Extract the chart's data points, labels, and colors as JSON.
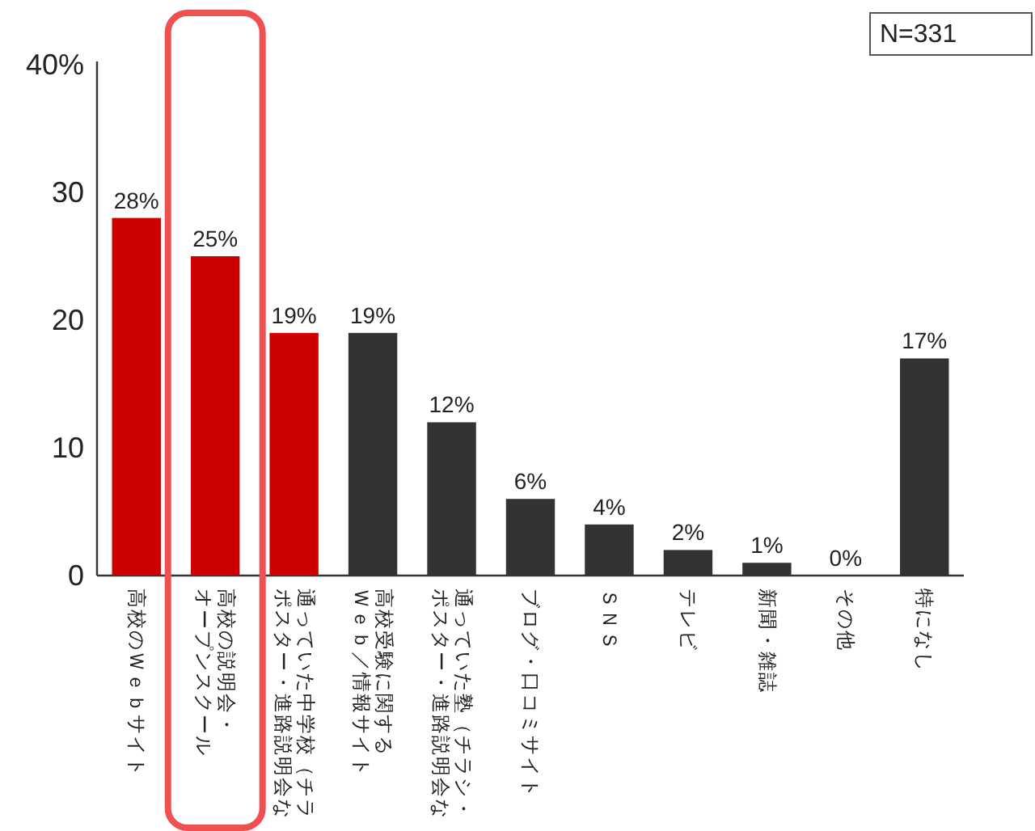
{
  "chart_data": {
    "type": "bar",
    "categories": [
      "高校のＷｅｂサイト",
      "高校の説明会・オープンスクール",
      "通っていた中学校（チラポスター・進路説明会な",
      "高校受験に関するＷｅｂ／情報サイト",
      "通っていた塾（チラシ・ポスター・進路説明会な",
      "ブログ・口コミサイト",
      "ＳＮＳ",
      "テレビ",
      "新聞・雑誌",
      "その他",
      "特になし"
    ],
    "values": [
      28,
      25,
      19,
      19,
      12,
      6,
      4,
      2,
      1,
      0,
      17
    ],
    "colors": [
      "#cc0000",
      "#cc0000",
      "#cc0000",
      "#333333",
      "#333333",
      "#333333",
      "#333333",
      "#333333",
      "#333333",
      "#333333",
      "#333333"
    ],
    "ylim": [
      0,
      40
    ],
    "yticks": [
      0,
      10,
      20,
      30,
      {
        "value": 40,
        "label": "40%"
      }
    ],
    "data_labels": true,
    "value_labels": [
      "28%",
      "25%",
      "19%",
      "19%",
      "12%",
      "6%",
      "4%",
      "2%",
      "1%",
      "0%",
      "17%"
    ],
    "annotations": [
      "N=331"
    ]
  }
}
